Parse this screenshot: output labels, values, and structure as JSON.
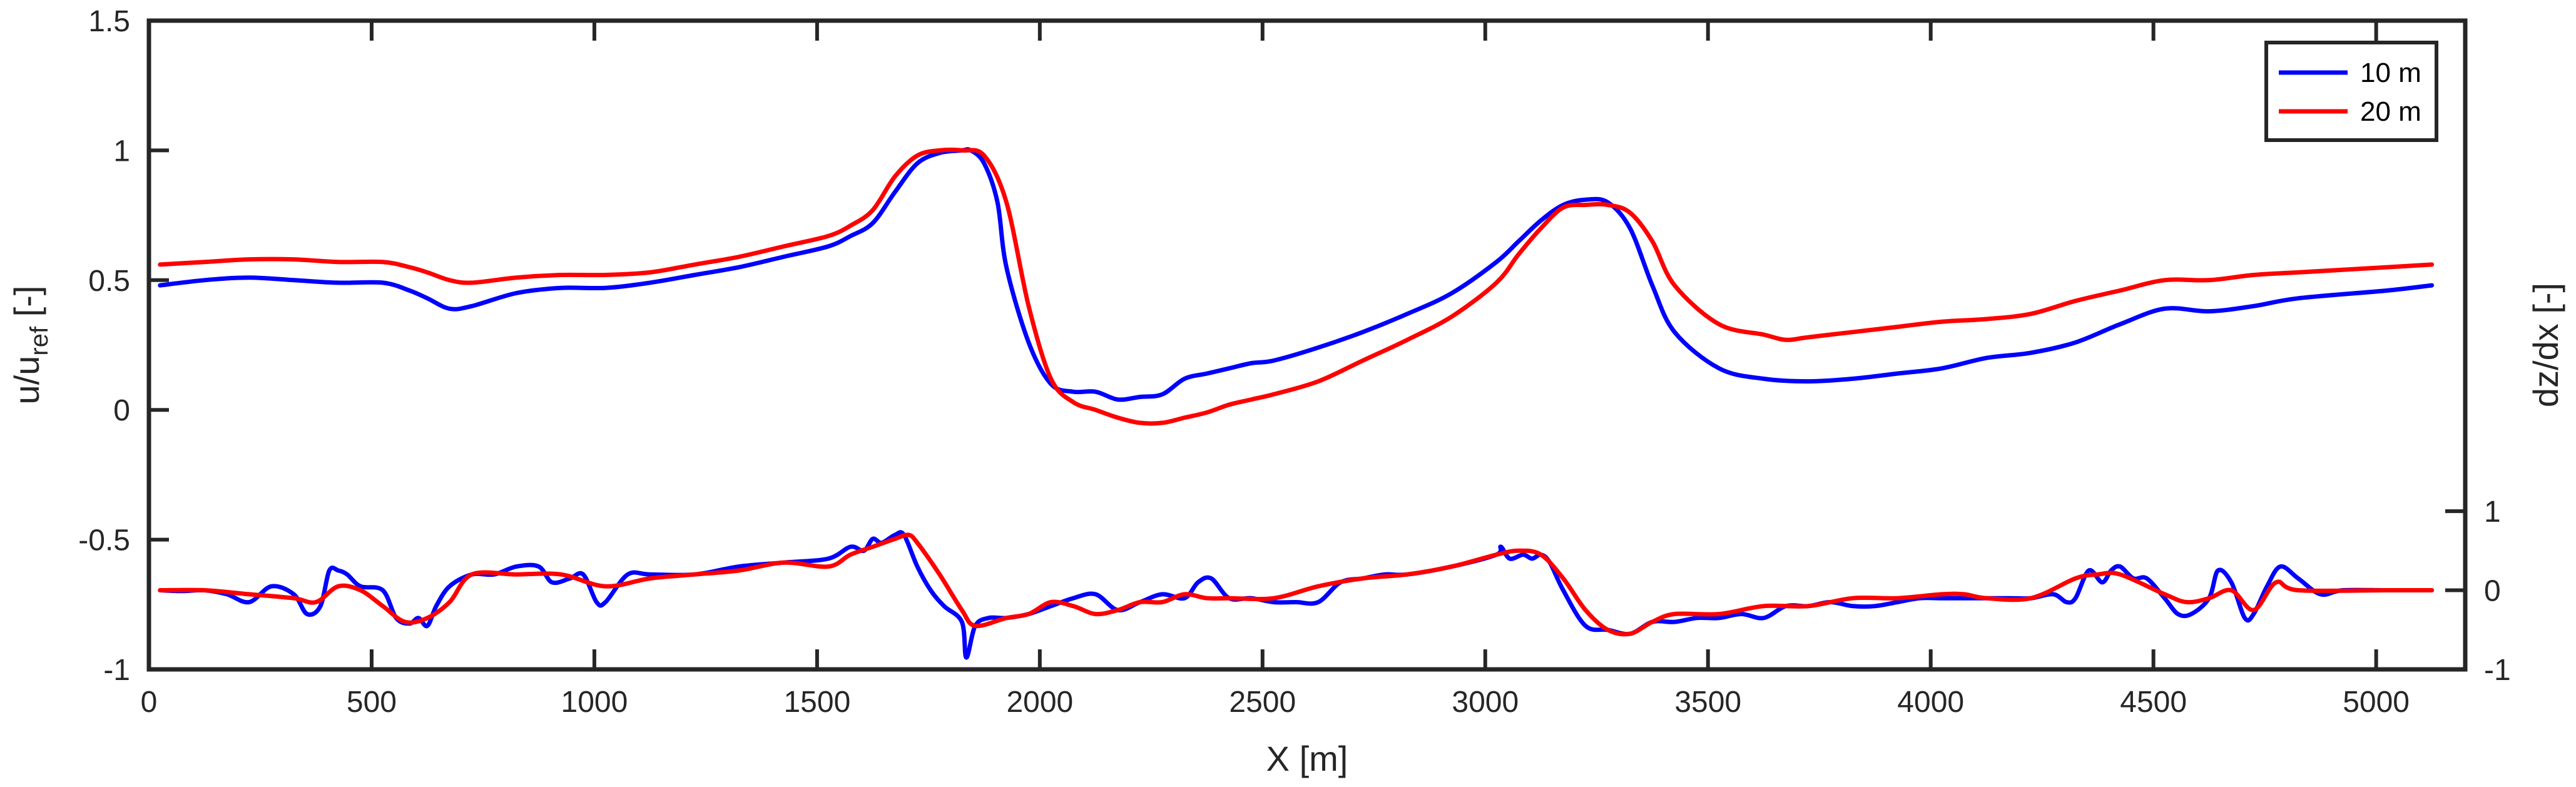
{
  "chart_data": {
    "type": "line",
    "xlabel": "X [m]",
    "ylabel_left": {
      "main": "u/u",
      "sub": "ref",
      "unit": " [-]"
    },
    "ylabel_right": "dz/dx [-]",
    "xlim": [
      0,
      5200
    ],
    "ylim_left": [
      -1,
      1.5
    ],
    "ylim_right": [
      -1,
      7.2
    ],
    "x_ticks": [
      "0",
      "500",
      "1000",
      "1500",
      "2000",
      "2500",
      "3000",
      "3500",
      "4000",
      "4500",
      "5000"
    ],
    "y_left_ticks": [
      "-1",
      "-0.5",
      "0",
      "0.5",
      "1",
      "1.5"
    ],
    "y_right_ticks": [
      "-1",
      "0",
      "1"
    ],
    "legend": {
      "position": "top-right",
      "entries": [
        "10 m",
        "20 m"
      ]
    },
    "colors": {
      "10m": "#0000ff",
      "20m": "#ff0000",
      "axis": "#262626"
    },
    "grid": false,
    "series": [
      {
        "name": "10 m",
        "axis": "left",
        "x": [
          0,
          100,
          200,
          300,
          400,
          500,
          560,
          600,
          650,
          700,
          800,
          900,
          1000,
          1100,
          1200,
          1300,
          1400,
          1500,
          1550,
          1600,
          1650,
          1700,
          1750,
          1800,
          1820,
          1850,
          1880,
          1900,
          1950,
          2000,
          2050,
          2100,
          2150,
          2200,
          2250,
          2300,
          2350,
          2400,
          2450,
          2500,
          2600,
          2700,
          2800,
          2900,
          3000,
          3050,
          3100,
          3150,
          3200,
          3250,
          3300,
          3350,
          3400,
          3500,
          3600,
          3700,
          3800,
          3900,
          4000,
          4100,
          4200,
          4300,
          4400,
          4500,
          4600,
          4700,
          4800,
          5000,
          5100
        ],
        "y": [
          0.48,
          0.5,
          0.51,
          0.5,
          0.49,
          0.49,
          0.46,
          0.43,
          0.39,
          0.4,
          0.45,
          0.47,
          0.47,
          0.49,
          0.52,
          0.55,
          0.59,
          0.63,
          0.67,
          0.72,
          0.84,
          0.95,
          0.99,
          1.0,
          1.0,
          0.95,
          0.8,
          0.55,
          0.26,
          0.1,
          0.07,
          0.07,
          0.04,
          0.05,
          0.06,
          0.12,
          0.14,
          0.16,
          0.18,
          0.19,
          0.24,
          0.3,
          0.37,
          0.45,
          0.57,
          0.65,
          0.73,
          0.79,
          0.81,
          0.8,
          0.7,
          0.48,
          0.3,
          0.16,
          0.12,
          0.11,
          0.12,
          0.14,
          0.16,
          0.2,
          0.22,
          0.26,
          0.33,
          0.39,
          0.38,
          0.4,
          0.43,
          0.46,
          0.48
        ]
      },
      {
        "name": "20 m",
        "axis": "left",
        "x": [
          0,
          100,
          200,
          300,
          400,
          500,
          560,
          600,
          650,
          700,
          800,
          900,
          1000,
          1100,
          1200,
          1300,
          1400,
          1500,
          1550,
          1600,
          1650,
          1700,
          1750,
          1800,
          1850,
          1900,
          1950,
          2000,
          2050,
          2100,
          2150,
          2200,
          2250,
          2300,
          2350,
          2400,
          2450,
          2500,
          2600,
          2700,
          2800,
          2900,
          3000,
          3050,
          3100,
          3150,
          3200,
          3250,
          3300,
          3350,
          3400,
          3500,
          3600,
          3650,
          3700,
          3800,
          3900,
          4000,
          4100,
          4200,
          4300,
          4400,
          4500,
          4600,
          4700,
          4800,
          5000,
          5100
        ],
        "y": [
          0.56,
          0.57,
          0.58,
          0.58,
          0.57,
          0.57,
          0.55,
          0.53,
          0.5,
          0.49,
          0.51,
          0.52,
          0.52,
          0.53,
          0.56,
          0.59,
          0.63,
          0.67,
          0.71,
          0.77,
          0.9,
          0.98,
          1.0,
          1.0,
          0.98,
          0.8,
          0.4,
          0.12,
          0.03,
          0.0,
          -0.03,
          -0.05,
          -0.05,
          -0.03,
          -0.01,
          0.02,
          0.04,
          0.06,
          0.11,
          0.19,
          0.27,
          0.36,
          0.49,
          0.6,
          0.7,
          0.78,
          0.79,
          0.79,
          0.76,
          0.65,
          0.48,
          0.33,
          0.29,
          0.27,
          0.28,
          0.3,
          0.32,
          0.34,
          0.35,
          0.37,
          0.42,
          0.46,
          0.5,
          0.5,
          0.52,
          0.53,
          0.55,
          0.56
        ]
      },
      {
        "name": "10 m",
        "axis": "right",
        "x": [
          0,
          50,
          100,
          150,
          200,
          250,
          300,
          330,
          360,
          380,
          400,
          420,
          450,
          500,
          530,
          560,
          580,
          600,
          620,
          650,
          700,
          750,
          800,
          850,
          880,
          920,
          950,
          980,
          1000,
          1050,
          1100,
          1200,
          1300,
          1400,
          1500,
          1550,
          1580,
          1600,
          1620,
          1650,
          1670,
          1700,
          1730,
          1760,
          1800,
          1810,
          1830,
          1860,
          1900,
          1950,
          2000,
          2050,
          2100,
          2150,
          2200,
          2250,
          2300,
          2330,
          2360,
          2400,
          2450,
          2500,
          2550,
          2600,
          2650,
          2700,
          2750,
          2800,
          2900,
          3000,
          3010,
          3030,
          3060,
          3080,
          3100,
          3120,
          3150,
          3200,
          3250,
          3300,
          3350,
          3400,
          3450,
          3500,
          3550,
          3600,
          3650,
          3700,
          3750,
          3800,
          3850,
          3900,
          3950,
          4000,
          4050,
          4100,
          4150,
          4200,
          4250,
          4280,
          4300,
          4330,
          4360,
          4380,
          4400,
          4430,
          4460,
          4500,
          4530,
          4560,
          4600,
          4620,
          4650,
          4680,
          4700,
          4730,
          4760,
          4800,
          4850,
          4900,
          5000,
          5100
        ],
        "y": [
          0.0,
          -0.01,
          0.0,
          -0.05,
          -0.15,
          0.05,
          -0.05,
          -0.3,
          -0.2,
          0.25,
          0.25,
          0.2,
          0.05,
          0.0,
          -0.35,
          -0.42,
          -0.35,
          -0.45,
          -0.2,
          0.05,
          0.2,
          0.2,
          0.3,
          0.3,
          0.1,
          0.15,
          0.2,
          -0.15,
          -0.15,
          0.2,
          0.2,
          0.2,
          0.3,
          0.35,
          0.4,
          0.55,
          0.5,
          0.65,
          0.6,
          0.7,
          0.7,
          0.3,
          0.0,
          -0.2,
          -0.4,
          -0.85,
          -0.45,
          -0.35,
          -0.35,
          -0.3,
          -0.2,
          -0.1,
          -0.05,
          -0.25,
          -0.15,
          -0.05,
          -0.1,
          0.1,
          0.15,
          -0.1,
          -0.1,
          -0.15,
          -0.15,
          -0.15,
          0.1,
          0.15,
          0.2,
          0.2,
          0.3,
          0.45,
          0.55,
          0.4,
          0.45,
          0.4,
          0.45,
          0.35,
          0.0,
          -0.45,
          -0.5,
          -0.55,
          -0.4,
          -0.4,
          -0.35,
          -0.35,
          -0.3,
          -0.35,
          -0.2,
          -0.2,
          -0.15,
          -0.2,
          -0.2,
          -0.15,
          -0.1,
          -0.1,
          -0.1,
          -0.1,
          -0.1,
          -0.1,
          -0.05,
          -0.15,
          -0.1,
          0.25,
          0.1,
          0.25,
          0.3,
          0.15,
          0.15,
          -0.1,
          -0.3,
          -0.3,
          -0.1,
          0.25,
          0.1,
          -0.35,
          -0.3,
          0.05,
          0.3,
          0.15,
          -0.05,
          0.0,
          0.0,
          0.0
        ]
      },
      {
        "name": "20 m",
        "axis": "right",
        "x": [
          0,
          100,
          200,
          300,
          350,
          400,
          450,
          500,
          550,
          600,
          650,
          700,
          800,
          900,
          1000,
          1100,
          1200,
          1300,
          1400,
          1500,
          1550,
          1600,
          1650,
          1680,
          1700,
          1750,
          1800,
          1830,
          1900,
          1950,
          2000,
          2050,
          2100,
          2150,
          2200,
          2250,
          2300,
          2350,
          2400,
          2500,
          2600,
          2700,
          2800,
          2900,
          3000,
          3050,
          3100,
          3150,
          3200,
          3250,
          3300,
          3350,
          3400,
          3500,
          3600,
          3700,
          3800,
          3900,
          4000,
          4050,
          4100,
          4200,
          4300,
          4350,
          4400,
          4500,
          4550,
          4600,
          4650,
          4700,
          4750,
          4800,
          5000,
          5100
        ],
        "y": [
          0.0,
          0.0,
          -0.05,
          -0.1,
          -0.15,
          0.05,
          0.0,
          -0.2,
          -0.4,
          -0.35,
          -0.15,
          0.2,
          0.2,
          0.2,
          0.05,
          0.15,
          0.2,
          0.25,
          0.35,
          0.3,
          0.45,
          0.55,
          0.65,
          0.7,
          0.6,
          0.2,
          -0.25,
          -0.45,
          -0.35,
          -0.3,
          -0.15,
          -0.2,
          -0.3,
          -0.25,
          -0.15,
          -0.15,
          -0.05,
          -0.1,
          -0.1,
          -0.1,
          0.05,
          0.15,
          0.2,
          0.3,
          0.45,
          0.5,
          0.45,
          0.15,
          -0.25,
          -0.5,
          -0.55,
          -0.4,
          -0.3,
          -0.3,
          -0.2,
          -0.2,
          -0.1,
          -0.1,
          -0.05,
          -0.05,
          -0.1,
          -0.1,
          0.15,
          0.2,
          0.2,
          -0.05,
          -0.15,
          -0.1,
          0.0,
          -0.25,
          0.1,
          0.0,
          0.0,
          0.0
        ]
      }
    ]
  }
}
